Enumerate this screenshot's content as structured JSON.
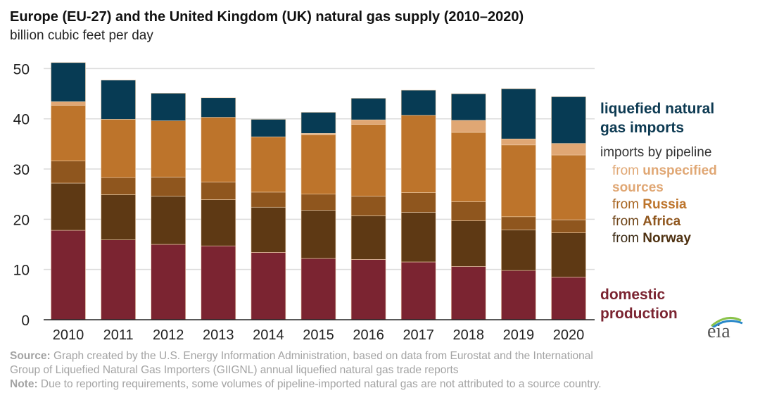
{
  "chart_data": {
    "type": "bar",
    "stacked": true,
    "title": "Europe (EU-27) and the United Kingdom (UK) natural gas supply (2010–2020)",
    "subtitle": "billion cubic feet per day",
    "categories": [
      "2010",
      "2011",
      "2012",
      "2013",
      "2014",
      "2015",
      "2016",
      "2017",
      "2018",
      "2019",
      "2020"
    ],
    "ylim": [
      0,
      50
    ],
    "yticks": [
      0,
      10,
      20,
      30,
      40,
      50
    ],
    "grid": true,
    "legend_placement": "right",
    "series": [
      {
        "name": "domestic production",
        "color": "#7b2431",
        "values": [
          17.8,
          15.9,
          15.0,
          14.7,
          13.4,
          12.2,
          12.0,
          11.5,
          10.6,
          9.8,
          8.5
        ]
      },
      {
        "name": "from Norway",
        "color": "#5e3914",
        "values": [
          9.4,
          9.0,
          9.6,
          9.2,
          9.0,
          9.6,
          8.7,
          9.9,
          9.1,
          8.1,
          8.8
        ]
      },
      {
        "name": "from Africa",
        "color": "#8f561e",
        "values": [
          4.4,
          3.4,
          3.8,
          3.5,
          3.0,
          3.2,
          3.9,
          3.9,
          3.8,
          2.6,
          2.6
        ]
      },
      {
        "name": "from Russia",
        "color": "#bd742b",
        "values": [
          11.1,
          11.6,
          11.2,
          12.9,
          11.0,
          11.8,
          14.3,
          15.4,
          13.8,
          14.3,
          12.9
        ]
      },
      {
        "name": "from unspecified sources",
        "color": "#e0a774",
        "values": [
          0.7,
          0,
          0,
          0,
          0,
          0.3,
          0.9,
          0,
          2.4,
          1.2,
          2.3
        ]
      },
      {
        "name": "liquefied natural gas imports",
        "color": "#073b54",
        "values": [
          7.8,
          7.8,
          5.5,
          3.9,
          3.5,
          4.2,
          4.3,
          5.0,
          5.3,
          10.0,
          9.3
        ]
      }
    ]
  },
  "legend": {
    "lng": "liquefied natural gas imports",
    "pipeline": "imports by pipeline",
    "from": "from",
    "unspecified": "unspecified sources",
    "russia": "Russia",
    "africa": "Africa",
    "norway": "Norway",
    "domestic": "domestic production"
  },
  "legend_colors": {
    "unspecified": "#e0a774",
    "russia": "#bd742b",
    "africa": "#8f561e",
    "norway": "#5e3914"
  },
  "footer": {
    "source_label": "Source:",
    "source_text": " Graph created by the U.S. Energy Information Administration, based on data from Eurostat and the International",
    "source_text2": "Group of Liquefied Natural Gas Importers (GIIGNL) annual liquefied natural gas trade reports",
    "note_label": "Note:",
    "note_text": " Due to reporting requirements, some volumes of pipeline-imported natural gas are not attributed to a source country."
  },
  "logo": "eia"
}
